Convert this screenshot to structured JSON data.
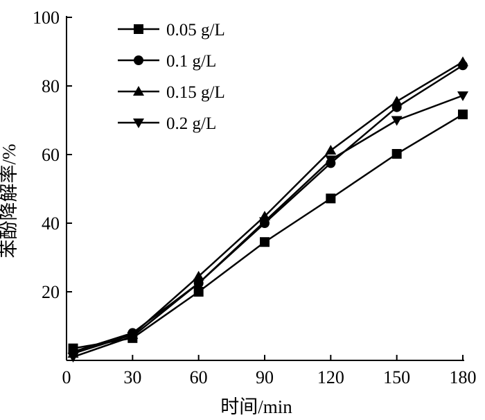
{
  "chart_data": {
    "type": "line",
    "xlabel": "时间/min",
    "ylabel": "苯酚降解率/%",
    "xlim": [
      0,
      180
    ],
    "ylim": [
      0,
      100
    ],
    "x_ticks": [
      0,
      30,
      60,
      90,
      120,
      150,
      180
    ],
    "y_ticks": [
      20,
      40,
      60,
      80,
      100
    ],
    "grid": false,
    "legend_position": "top-left",
    "series": [
      {
        "name": "0.05 g/L",
        "marker": "square",
        "color": "#000000",
        "x": [
          3,
          30,
          60,
          90,
          120,
          150,
          180
        ],
        "y": [
          3.5,
          6.5,
          20,
          34.5,
          47.2,
          60.2,
          71.7
        ]
      },
      {
        "name": "0.1 g/L",
        "marker": "circle",
        "color": "#000000",
        "x": [
          3,
          30,
          60,
          90,
          120,
          150,
          180
        ],
        "y": [
          2.5,
          8.0,
          22.5,
          40.0,
          57.5,
          73.8,
          86.0
        ]
      },
      {
        "name": "0.15 g/L",
        "marker": "triangle-up",
        "color": "#000000",
        "x": [
          3,
          30,
          60,
          90,
          120,
          150,
          180
        ],
        "y": [
          2.0,
          7.5,
          24.5,
          42.0,
          61.2,
          75.5,
          87.0
        ]
      },
      {
        "name": "0.2 g/L",
        "marker": "triangle-down",
        "color": "#000000",
        "x": [
          3,
          30,
          60,
          90,
          120,
          150,
          180
        ],
        "y": [
          1.0,
          7.0,
          22.5,
          40.5,
          58.5,
          70.0,
          77.2
        ]
      }
    ]
  }
}
